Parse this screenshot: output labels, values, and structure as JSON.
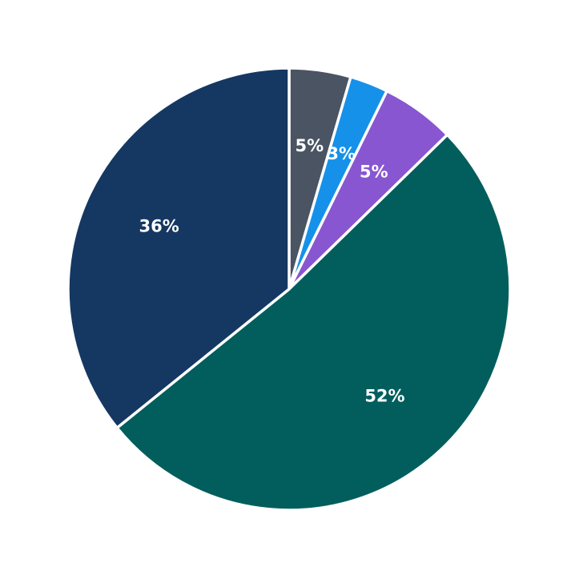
{
  "chart_data": {
    "type": "pie",
    "values": [
      4.5,
      2.8,
      5.4,
      51.5,
      35.8
    ],
    "value_labels": [
      "5%",
      "3%",
      "5%",
      "52%",
      "36%"
    ],
    "colors": [
      "#4a5462",
      "#1591ea",
      "#8856d0",
      "#025e5d",
      "#143862"
    ]
  }
}
